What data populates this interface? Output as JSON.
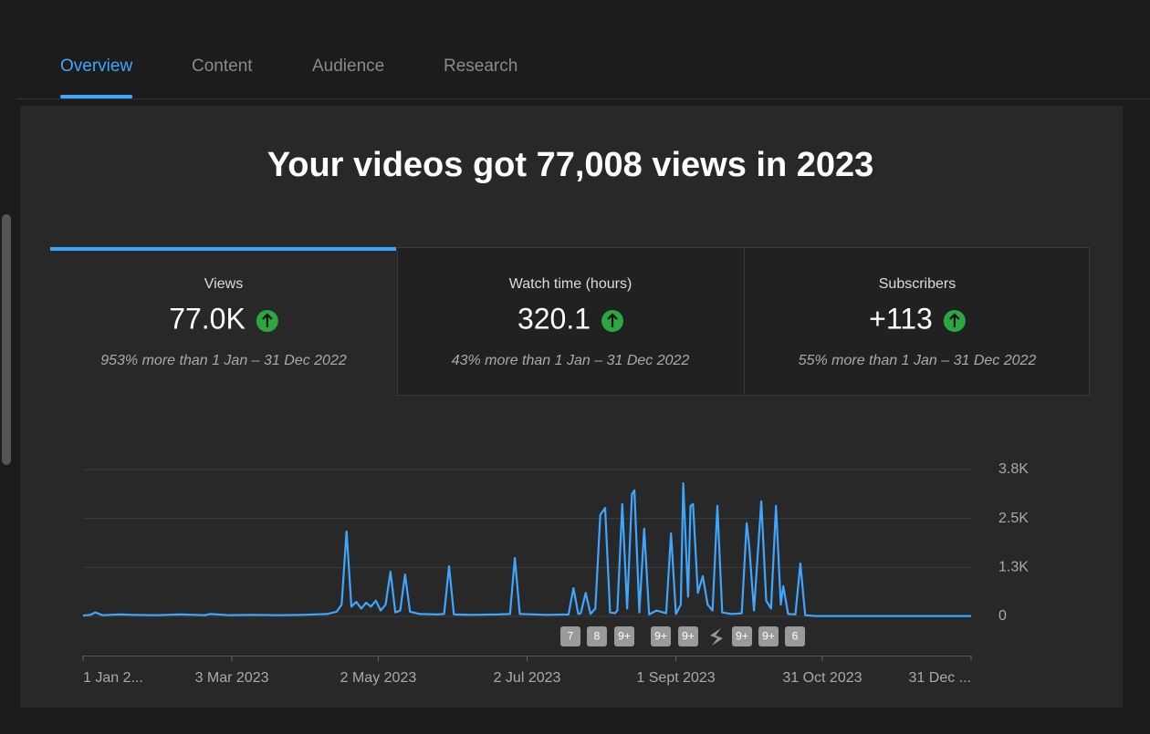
{
  "tabs": [
    "Overview",
    "Content",
    "Audience",
    "Research"
  ],
  "headline": "Your videos got 77,008 views in 2023",
  "cards": [
    {
      "label": "Views",
      "value": "77.0K",
      "change": "953% more than 1 Jan – 31 Dec 2022"
    },
    {
      "label": "Watch time (hours)",
      "value": "320.1",
      "change": "43% more than 1 Jan – 31 Dec 2022"
    },
    {
      "label": "Subscribers",
      "value": "+113",
      "change": "55% more than 1 Jan – 31 Dec 2022"
    }
  ],
  "chart_data": {
    "type": "line",
    "color": "#3ea6ff",
    "grid": true,
    "x": [
      0,
      3,
      5,
      8,
      15,
      20,
      30,
      40,
      50,
      52,
      60,
      70,
      80,
      90,
      100,
      104,
      106,
      108,
      110,
      112,
      114,
      116,
      118,
      120,
      122,
      124,
      126,
      128,
      130,
      132,
      134,
      138,
      145,
      148,
      150,
      152,
      160,
      170,
      175,
      177,
      179,
      190,
      199,
      201,
      203,
      204,
      206,
      208,
      210,
      212,
      214,
      216,
      218,
      219,
      221,
      223,
      225,
      226,
      228,
      230,
      232,
      235,
      239,
      241,
      243,
      245,
      246,
      248,
      249,
      250,
      252,
      254,
      256,
      258,
      260,
      262,
      266,
      270,
      272,
      273,
      275,
      278,
      280,
      282,
      284,
      286,
      287,
      289,
      292,
      294,
      296,
      300,
      364
    ],
    "values": [
      20,
      40,
      100,
      30,
      50,
      40,
      30,
      50,
      30,
      60,
      30,
      40,
      30,
      40,
      60,
      120,
      300,
      2170,
      250,
      370,
      200,
      350,
      250,
      400,
      150,
      300,
      1140,
      100,
      150,
      1070,
      120,
      60,
      50,
      60,
      1280,
      50,
      40,
      50,
      60,
      1490,
      60,
      40,
      50,
      720,
      60,
      80,
      600,
      60,
      200,
      2590,
      2770,
      100,
      80,
      150,
      2870,
      200,
      3120,
      3220,
      100,
      2240,
      50,
      150,
      80,
      2120,
      60,
      300,
      3400,
      500,
      2820,
      2870,
      600,
      1030,
      300,
      150,
      2820,
      100,
      60,
      80,
      2380,
      1820,
      150,
      2940,
      400,
      200,
      2820,
      300,
      770,
      60,
      50,
      1350,
      30,
      10,
      10
    ],
    "xlim": [
      0,
      364
    ],
    "xticks": [
      {
        "value": 0,
        "label": "1 Jan 2..."
      },
      {
        "value": 61,
        "label": "3 Mar 2023"
      },
      {
        "value": 121,
        "label": "2 May 2023"
      },
      {
        "value": 182,
        "label": "2 Jul 2023"
      },
      {
        "value": 243,
        "label": "1 Sept 2023"
      },
      {
        "value": 303,
        "label": "31 Oct 2023"
      },
      {
        "value": 364,
        "label": "31 Dec ..."
      }
    ],
    "ylim": [
      0,
      3750
    ],
    "yticks": [
      0,
      {
        "value": 1250,
        "label": "1.3K"
      },
      {
        "value": 2500,
        "label": "2.5K"
      },
      {
        "value": 3750,
        "label": "3.8K"
      }
    ],
    "markers": [
      "7",
      "8",
      "9+",
      "9+",
      "9+",
      "9+",
      "9+",
      "6"
    ]
  }
}
